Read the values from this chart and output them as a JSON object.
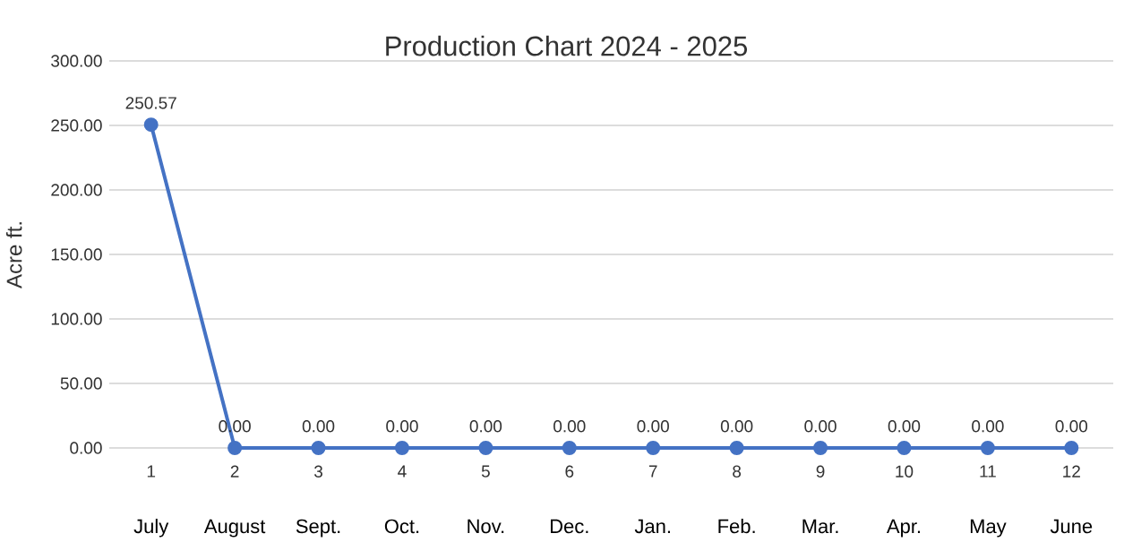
{
  "chart_data": {
    "type": "line",
    "title": "Production Chart 2024 - 2025",
    "ylabel": "Acre ft.",
    "categories": [
      "1",
      "2",
      "3",
      "4",
      "5",
      "6",
      "7",
      "8",
      "9",
      "10",
      "11",
      "12"
    ],
    "series": [
      {
        "color": "#4472c4",
        "values": [
          250.57,
          0,
          0,
          0,
          0,
          0,
          0,
          0,
          0,
          0,
          0,
          0
        ],
        "value_labels": [
          "250.57",
          "0.00",
          "0.00",
          "0.00",
          "0.00",
          "0.00",
          "0.00",
          "0.00",
          "0.00",
          "0.00",
          "0.00",
          "0.00"
        ]
      }
    ],
    "annotations": [
      "July",
      "August",
      "Sept.",
      "Oct.",
      "Nov.",
      "Dec.",
      "Jan.",
      "Feb.",
      "Mar.",
      "Apr.",
      "May",
      "June"
    ],
    "ylim": [
      0,
      300
    ],
    "yticks": [
      {
        "value": 0,
        "label": "0.00"
      },
      {
        "value": 50,
        "label": "50.00"
      },
      {
        "value": 100,
        "label": "100.00"
      },
      {
        "value": 150,
        "label": "150.00"
      },
      {
        "value": 200,
        "label": "200.00"
      },
      {
        "value": 250,
        "label": "250.00"
      },
      {
        "value": 300,
        "label": "300.00"
      }
    ],
    "grid": "y",
    "marker": "circle",
    "line_style": "solid"
  }
}
